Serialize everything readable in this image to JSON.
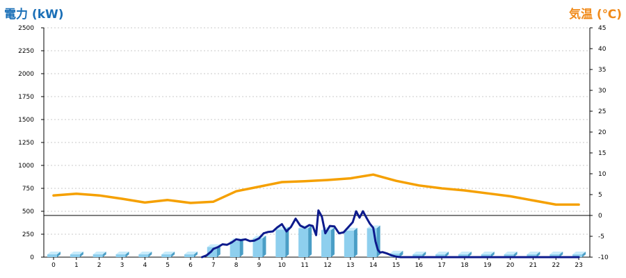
{
  "chart_data": {
    "type": "bar",
    "left_axis_title": "電力 (kW)",
    "right_axis_title": "気温 (℃)",
    "colors": {
      "left_title": "#1a6fb7",
      "right_title": "#f08a1a",
      "bars_front": "#8ecfee",
      "bars_side": "#4a9ec6",
      "bars_top": "#c9ecfb",
      "power_line": "#0d1a8c",
      "temp_line": "#f5a000",
      "grid": "#c8c8c8"
    },
    "left_axis": {
      "min": 0,
      "max": 2500,
      "ticks": [
        0,
        250,
        500,
        750,
        1000,
        1250,
        1500,
        1750,
        2000,
        2250,
        2500
      ]
    },
    "right_axis": {
      "min": -10,
      "max": 45,
      "ticks": [
        -10,
        -5,
        0,
        5,
        10,
        15,
        20,
        25,
        30,
        35,
        40,
        45
      ]
    },
    "x_ticks": [
      "0",
      "1",
      "2",
      "3",
      "4",
      "5",
      "6",
      "7",
      "8",
      "9",
      "10",
      "11",
      "12",
      "13",
      "14",
      "15",
      "16",
      "17",
      "18",
      "19",
      "20",
      "21",
      "22",
      "23"
    ],
    "series": [
      {
        "kind": "bar",
        "axis": "left",
        "x": [
          0,
          1,
          2,
          3,
          4,
          5,
          6,
          7,
          8,
          9,
          10,
          11,
          12,
          13,
          14,
          15,
          16,
          17,
          18,
          19,
          20,
          21,
          22,
          23
        ],
        "values": [
          0,
          0,
          0,
          0,
          0,
          0,
          0,
          110,
          175,
          205,
          300,
          315,
          295,
          290,
          315,
          40,
          0,
          0,
          0,
          0,
          0,
          0,
          0,
          0
        ]
      },
      {
        "kind": "line",
        "axis": "left",
        "x": [
          6.5,
          6.7,
          6.9,
          7.0,
          7.2,
          7.4,
          7.6,
          7.8,
          8.0,
          8.2,
          8.4,
          8.6,
          8.8,
          9.0,
          9.2,
          9.4,
          9.6,
          9.8,
          10.0,
          10.2,
          10.4,
          10.6,
          10.8,
          11.0,
          11.2,
          11.35,
          11.5,
          11.6,
          11.75,
          11.9,
          12.1,
          12.3,
          12.5,
          12.7,
          12.9,
          13.1,
          13.25,
          13.4,
          13.55,
          13.7,
          13.85,
          14.0,
          14.1,
          14.2,
          14.3,
          14.4,
          14.6,
          14.8,
          15.0,
          15.2,
          16.0,
          17.0,
          18.0,
          19.0,
          20.0,
          21.0,
          22.0,
          23.0
        ],
        "values": [
          0,
          20,
          60,
          90,
          110,
          140,
          135,
          160,
          195,
          185,
          195,
          175,
          180,
          205,
          260,
          275,
          280,
          325,
          360,
          280,
          330,
          420,
          345,
          320,
          350,
          340,
          240,
          510,
          440,
          260,
          340,
          335,
          260,
          270,
          325,
          380,
          500,
          430,
          500,
          430,
          365,
          320,
          170,
          80,
          50,
          55,
          40,
          20,
          5,
          0,
          0,
          0,
          0,
          0,
          0,
          0,
          0,
          0
        ]
      },
      {
        "kind": "line",
        "axis": "right",
        "x": [
          0,
          1,
          2,
          3,
          4,
          5,
          6,
          7,
          8,
          9,
          10,
          11,
          12,
          13,
          14,
          15,
          16,
          17,
          18,
          19,
          20,
          21,
          22,
          23
        ],
        "values": [
          4.8,
          5.2,
          4.8,
          4.0,
          3.1,
          3.7,
          3.0,
          3.3,
          5.8,
          6.9,
          8.0,
          8.2,
          8.5,
          8.9,
          9.8,
          8.3,
          7.2,
          6.5,
          6.0,
          5.3,
          4.6,
          3.6,
          2.6,
          2.6
        ]
      }
    ],
    "grid": "horizontal-dashed"
  }
}
